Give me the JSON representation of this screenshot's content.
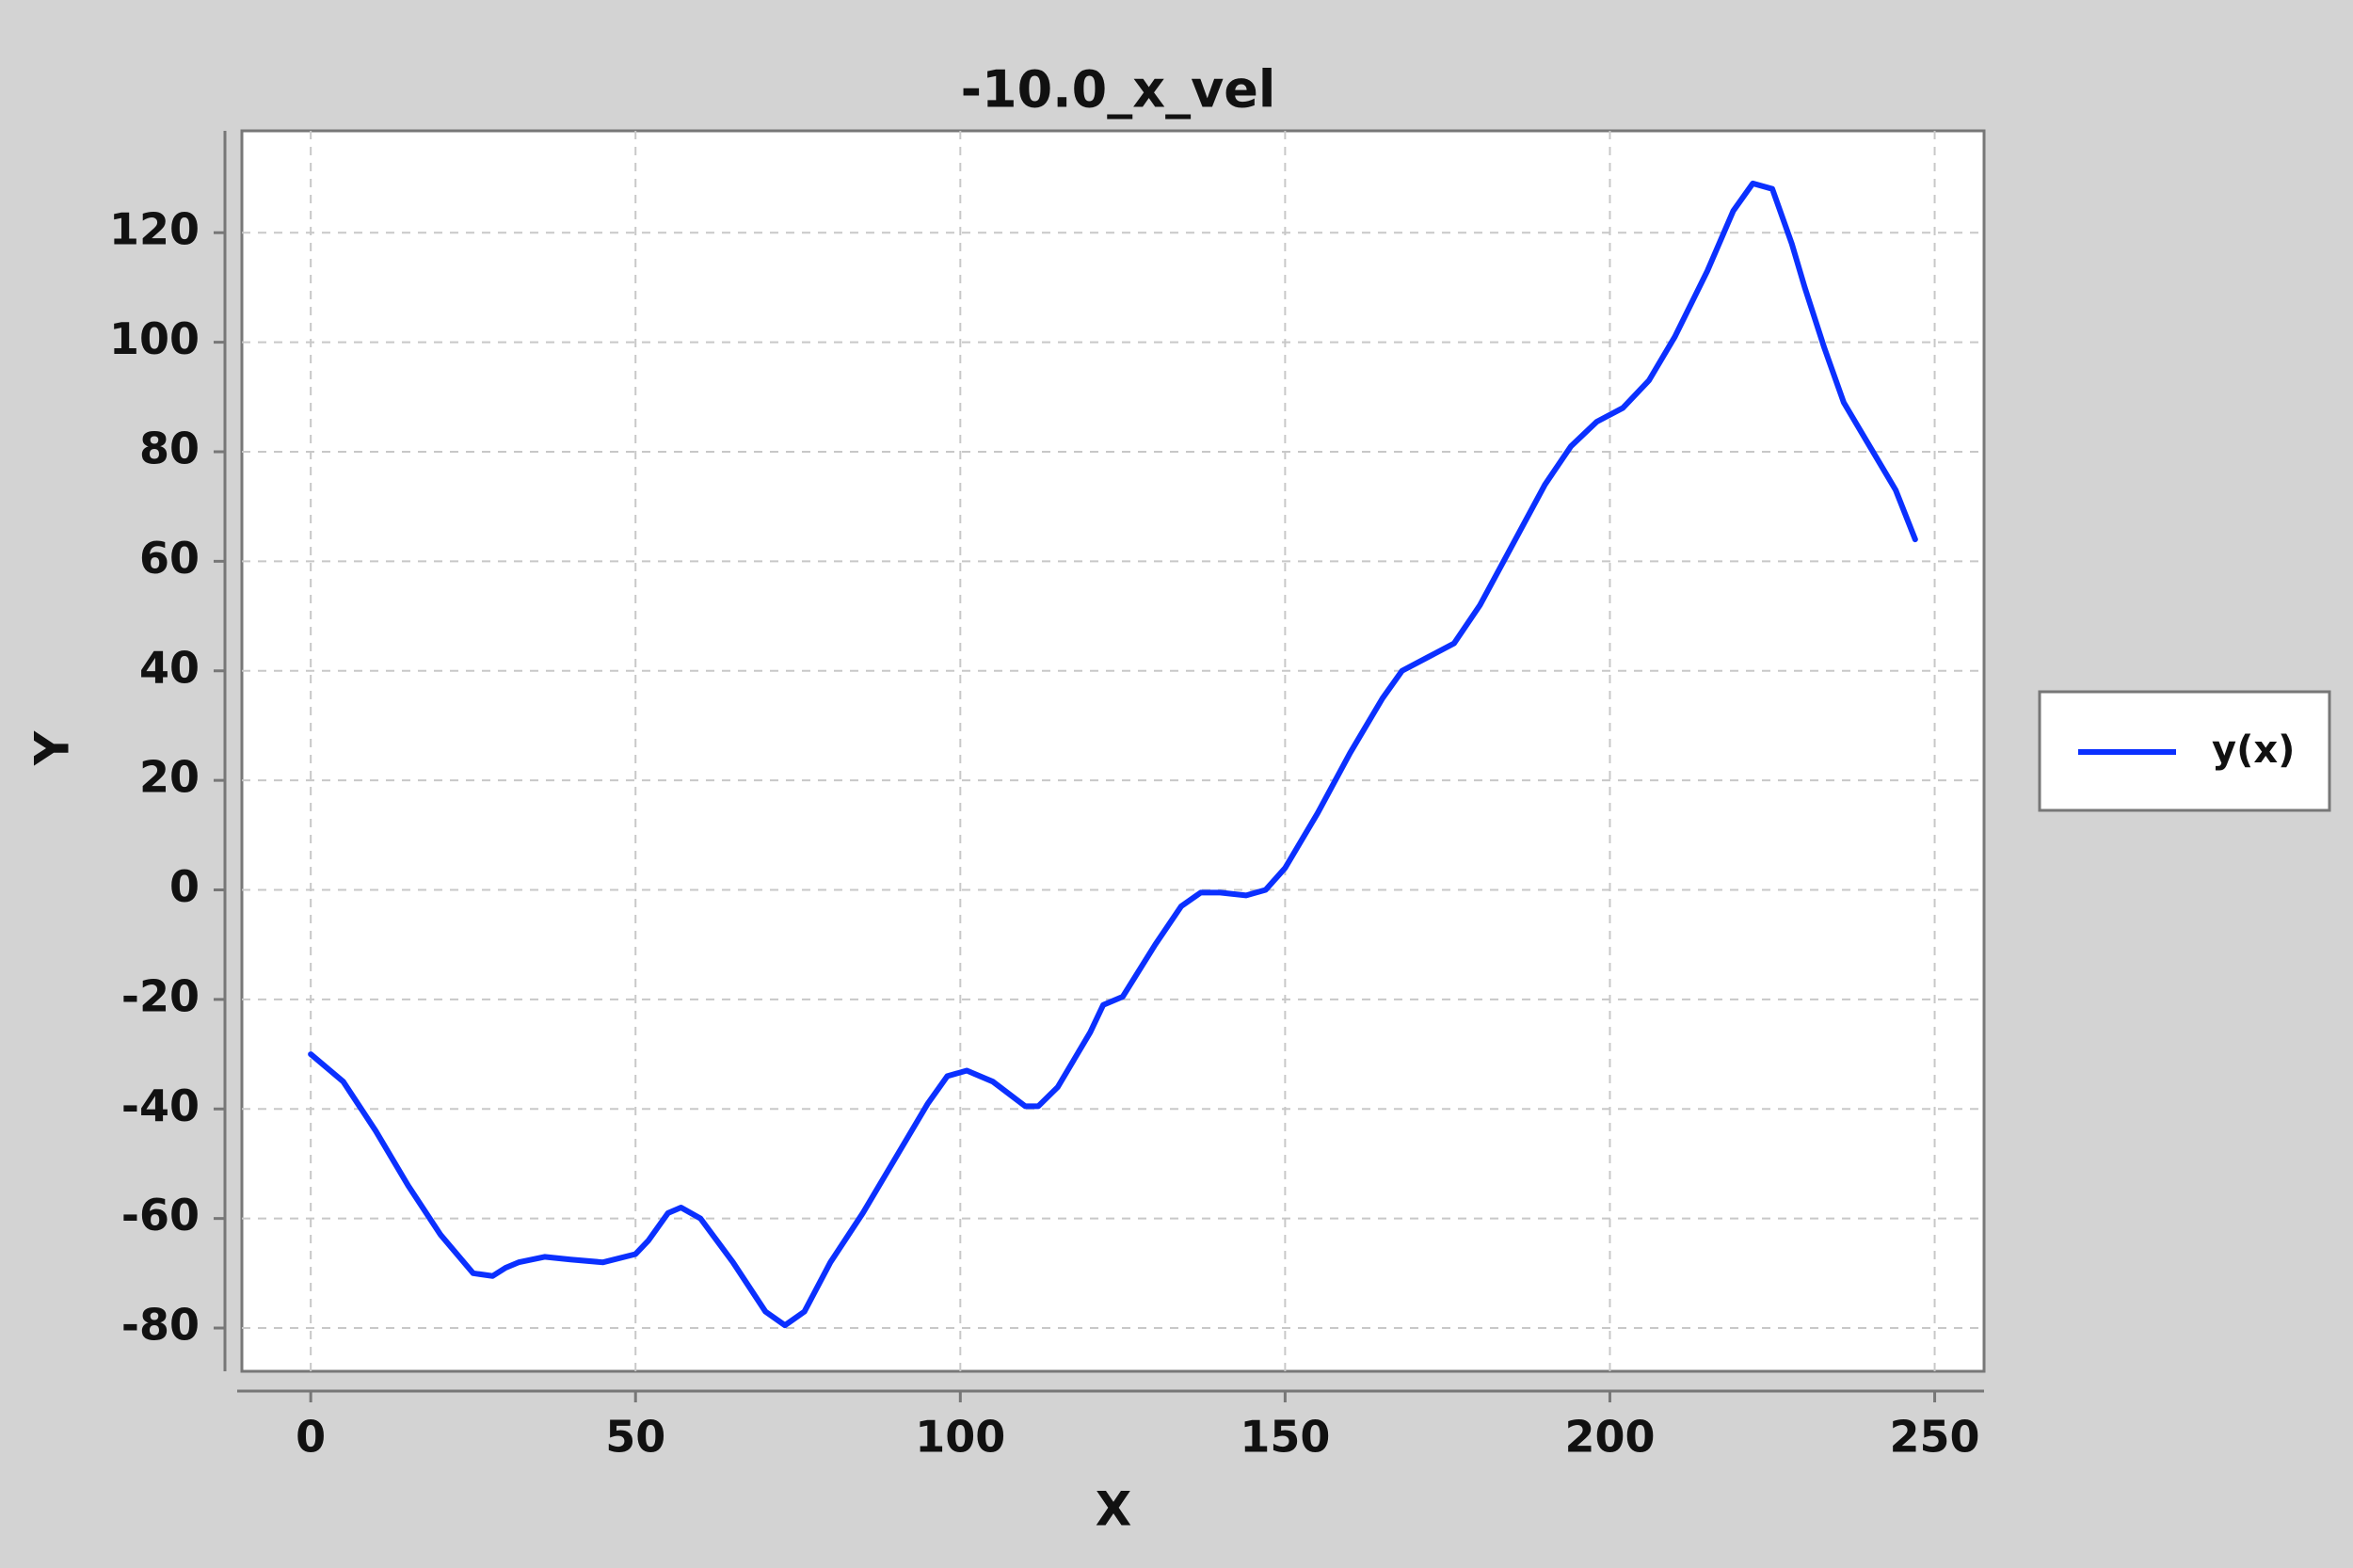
{
  "chart_data": {
    "type": "line",
    "title": "-10.0_x_vel",
    "x_label": "X",
    "y_label": "Y",
    "x": [
      0,
      5,
      10,
      15,
      20,
      25,
      28,
      30,
      32,
      36,
      40,
      45,
      50,
      52,
      55,
      57,
      60,
      65,
      70,
      73,
      76,
      80,
      85,
      90,
      92,
      95,
      98,
      101,
      105,
      110,
      112,
      115,
      120,
      122,
      125,
      130,
      134,
      137,
      140,
      144,
      147,
      150,
      155,
      160,
      165,
      168,
      172,
      176,
      180,
      185,
      190,
      194,
      198,
      202,
      206,
      210,
      215,
      219,
      222,
      225,
      228,
      230,
      233,
      236,
      240,
      244,
      247
    ],
    "series": [
      {
        "name": "y(x)",
        "color": "#0b30ff",
        "values": [
          -30,
          -35,
          -44,
          -54,
          -63,
          -70,
          -70.5,
          -69,
          -68,
          -67,
          -67.5,
          -68,
          -66.5,
          -64,
          -59,
          -58,
          -60,
          -68,
          -77,
          -79.5,
          -77,
          -68,
          -59,
          -49,
          -45,
          -39,
          -34,
          -33,
          -35,
          -39.5,
          -39.5,
          -36,
          -26,
          -21,
          -19.5,
          -10,
          -3,
          -0.5,
          -0.5,
          -1,
          0,
          4,
          14,
          25,
          35,
          40,
          42.5,
          45,
          52,
          63,
          74,
          81,
          85.5,
          88,
          93,
          101,
          113,
          124,
          129,
          128,
          118,
          110,
          99,
          89,
          81,
          73,
          64
        ]
      }
    ],
    "xlim": [
      -10.6,
      257.6
    ],
    "ylim": [
      -87.9,
      138.6
    ],
    "xticks": [
      0,
      50,
      100,
      150,
      200,
      250
    ],
    "yticks": [
      -80,
      -60,
      -40,
      -20,
      0,
      20,
      40,
      60,
      80,
      100,
      120
    ],
    "grid": true,
    "legend": "right"
  }
}
